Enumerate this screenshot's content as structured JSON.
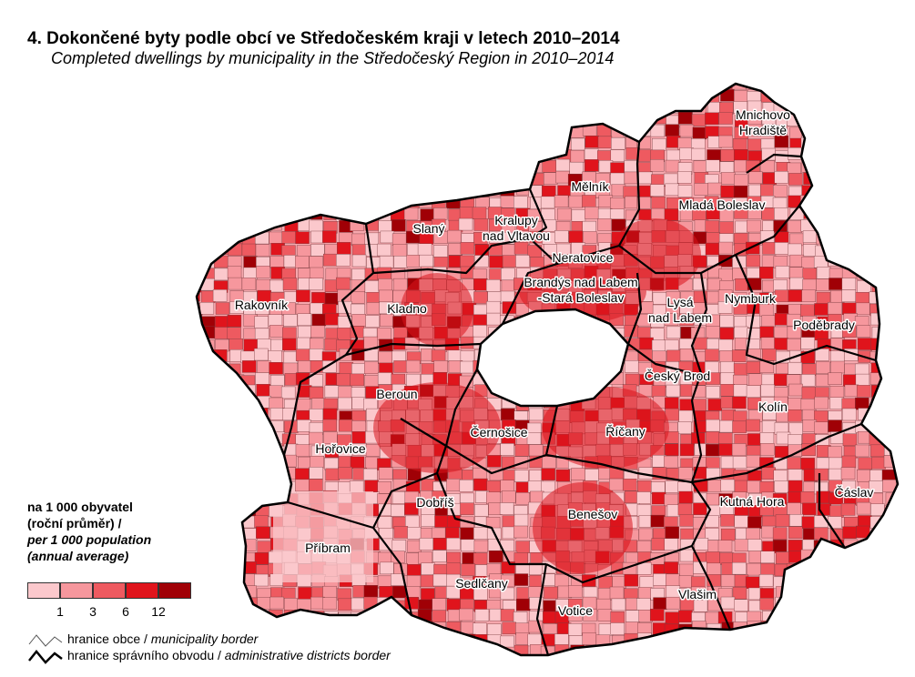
{
  "title_cs": "4. Dokončené byty podle obcí ve Středočeském kraji v letech 2010–2014",
  "title_en": "Completed dwellings by municipality in the Středočeský Region in 2010–2014",
  "districts": [
    {
      "name": "Mnichovo",
      "name2": "Hradiště"
    },
    {
      "name": "Mělník"
    },
    {
      "name": "Mladá Boleslav"
    },
    {
      "name": "Kralupy",
      "name2": "nad Vltavou"
    },
    {
      "name": "Slaný"
    },
    {
      "name": "Neratovice"
    },
    {
      "name": "Brandýs nad Labem",
      "name2": "-Stará Boleslav"
    },
    {
      "name": "Lysá",
      "name2": "nad Labem"
    },
    {
      "name": "Nymburk"
    },
    {
      "name": "Rakovník"
    },
    {
      "name": "Kladno"
    },
    {
      "name": "Poděbrady"
    },
    {
      "name": "Český Brod"
    },
    {
      "name": "Beroun"
    },
    {
      "name": "Kolín"
    },
    {
      "name": "Černošice"
    },
    {
      "name": "Říčany"
    },
    {
      "name": "Hořovice"
    },
    {
      "name": "Čáslav"
    },
    {
      "name": "Dobříš"
    },
    {
      "name": "Kutná Hora"
    },
    {
      "name": "Benešov"
    },
    {
      "name": "Příbram"
    },
    {
      "name": "Sedlčany"
    },
    {
      "name": "Vlašim"
    },
    {
      "name": "Votice"
    }
  ],
  "legend": {
    "title_cs_1": "na 1 000 obyvatel",
    "title_cs_2": "(roční průměr) /",
    "title_en_1": "per 1 000 population",
    "title_en_2": "(annual average)",
    "colors": [
      "#fbc8cc",
      "#f6979d",
      "#ee5a60",
      "#e0141c",
      "#a00006"
    ],
    "breaks": [
      "1",
      "3",
      "6",
      "12"
    ],
    "municipality_border_cs": "hranice obce / ",
    "municipality_border_en": "municipality border",
    "district_border_cs": "hranice správního obvodu / ",
    "district_border_en": "administrative districts border"
  }
}
